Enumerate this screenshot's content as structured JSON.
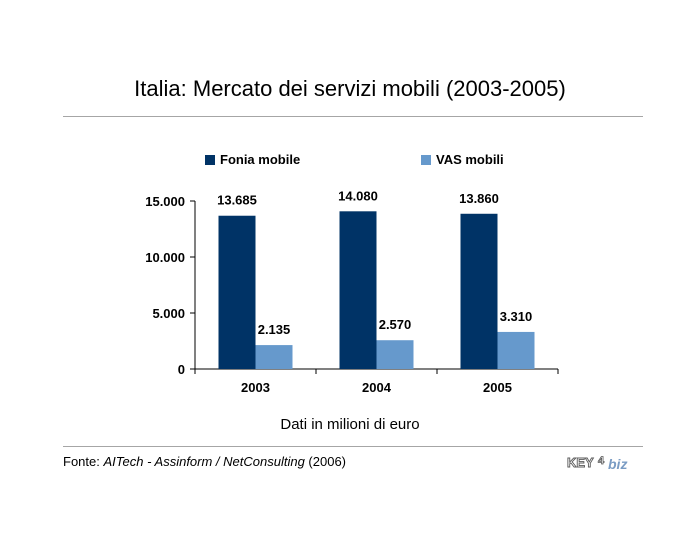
{
  "title": "Italia: Mercato dei servizi mobili (2003-2005)",
  "subtitle": "Dati in milioni di euro",
  "source": {
    "prefix": "Fonte: ",
    "authors": "AITech - Assinform / NetConsulting",
    "year": " (2006)"
  },
  "logo": {
    "text_key": "KEY",
    "text_num": "4",
    "text_biz": "biz"
  },
  "colors": {
    "fonia": "#003366",
    "vas": "#6699cc",
    "rule": "#a6a6a6"
  },
  "chart_data": {
    "type": "bar",
    "categories": [
      "2003",
      "2004",
      "2005"
    ],
    "series": [
      {
        "name": "Fonia mobile",
        "values": [
          13685,
          14080,
          13860
        ],
        "labels": [
          "13.685",
          "14.080",
          "13.860"
        ]
      },
      {
        "name": "VAS mobili",
        "values": [
          2135,
          2570,
          3310
        ],
        "labels": [
          "2.135",
          "2.570",
          "3.310"
        ]
      }
    ],
    "yticks": [
      0,
      5000,
      10000,
      15000
    ],
    "ytick_labels": [
      "0",
      "5.000",
      "10.000",
      "15.000"
    ],
    "ylim": [
      0,
      15000
    ],
    "legend": "top",
    "grid": false
  }
}
